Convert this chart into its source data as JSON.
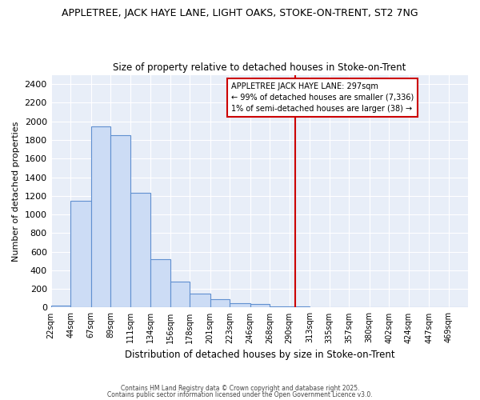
{
  "title_line1": "APPLETREE, JACK HAYE LANE, LIGHT OAKS, STOKE-ON-TRENT, ST2 7NG",
  "title_line2": "Size of property relative to detached houses in Stoke-on-Trent",
  "xlabel": "Distribution of detached houses by size in Stoke-on-Trent",
  "ylabel": "Number of detached properties",
  "bin_labels": [
    "22sqm",
    "44sqm",
    "67sqm",
    "89sqm",
    "111sqm",
    "134sqm",
    "156sqm",
    "178sqm",
    "201sqm",
    "223sqm",
    "246sqm",
    "268sqm",
    "290sqm",
    "313sqm",
    "335sqm",
    "357sqm",
    "380sqm",
    "402sqm",
    "424sqm",
    "447sqm",
    "469sqm"
  ],
  "bin_edges": [
    22,
    44,
    67,
    89,
    111,
    134,
    156,
    178,
    201,
    223,
    246,
    268,
    290,
    313,
    335,
    357,
    380,
    402,
    424,
    447,
    469
  ],
  "values": [
    25,
    1150,
    1950,
    1850,
    1230,
    520,
    275,
    150,
    90,
    45,
    40,
    15,
    10,
    5,
    3,
    2,
    1,
    2,
    1,
    2,
    0
  ],
  "bar_color": "#ccdcf5",
  "bar_edge_color": "#6090d0",
  "vline_x": 297,
  "vline_color": "#cc0000",
  "annotation_box_color": "#ffffff",
  "annotation_border_color": "#cc0000",
  "annotation_text_line1": "APPLETREE JACK HAYE LANE: 297sqm",
  "annotation_text_line2": "← 99% of detached houses are smaller (7,336)",
  "annotation_text_line3": "1% of semi-detached houses are larger (38) →",
  "annotation_fontsize": 7.0,
  "ylim": [
    0,
    2500
  ],
  "yticks": [
    0,
    200,
    400,
    600,
    800,
    1000,
    1200,
    1400,
    1600,
    1800,
    2000,
    2200,
    2400
  ],
  "background_color": "#ffffff",
  "plot_bg_color": "#e8eef8",
  "grid_color": "#ffffff",
  "footer_line1": "Contains HM Land Registry data © Crown copyright and database right 2025.",
  "footer_line2": "Contains public sector information licensed under the Open Government Licence v3.0."
}
